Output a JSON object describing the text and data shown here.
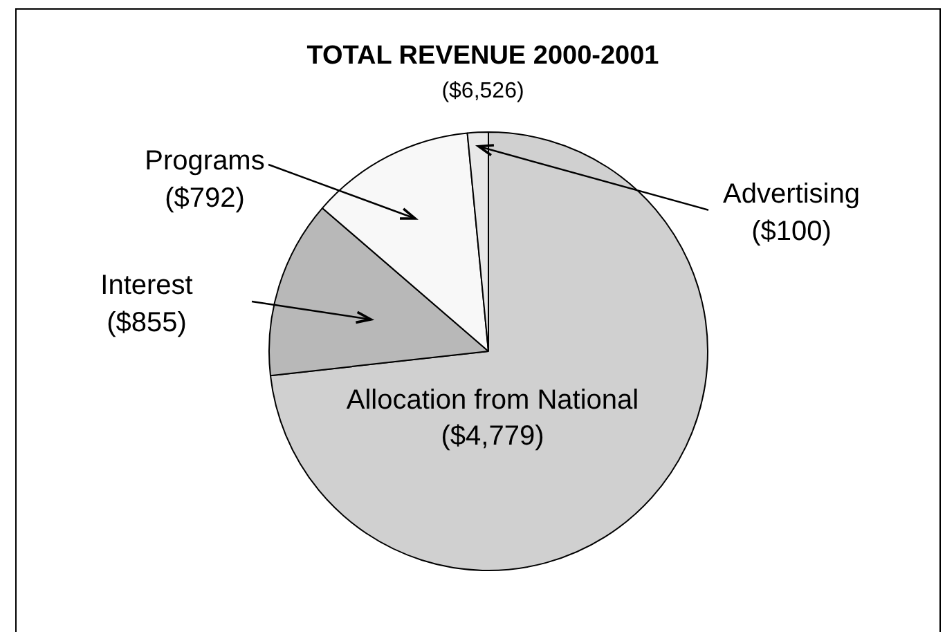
{
  "chart_data": {
    "type": "pie",
    "title": "TOTAL REVENUE 2000-2001",
    "subtitle": "($6,526)",
    "categories": [
      "Allocation from National",
      "Interest",
      "Programs",
      "Advertising"
    ],
    "values": [
      4779,
      855,
      792,
      100
    ],
    "value_labels": [
      "($4,779)",
      "($855)",
      "($792)",
      "($100)"
    ],
    "colors": [
      "#d0d0d0",
      "#b8b8b8",
      "#f8f8f8",
      "#e8e8e8"
    ],
    "legend": false
  }
}
